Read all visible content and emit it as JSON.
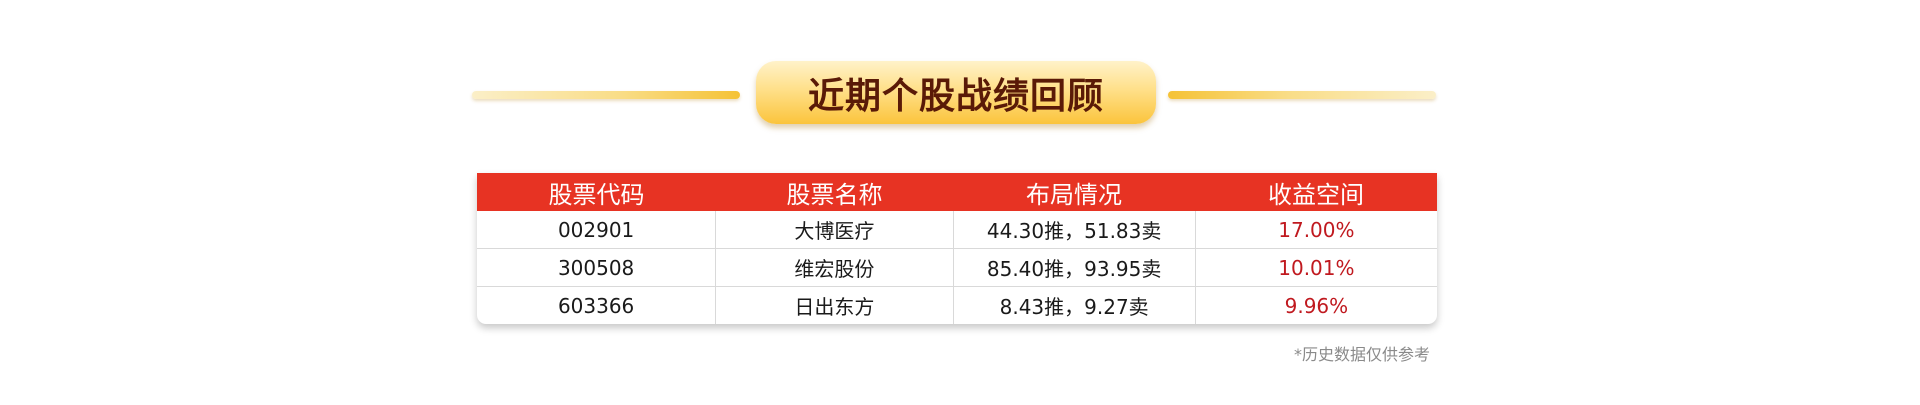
{
  "title": "近期个股战绩回顾",
  "table": {
    "headers": [
      "股票代码",
      "股票名称",
      "布局情况",
      "收益空间"
    ],
    "rows": [
      {
        "code": "002901",
        "name": "大博医疗",
        "layout": "44.30推，51.83卖",
        "gain": "17.00%"
      },
      {
        "code": "300508",
        "name": "维宏股份",
        "layout": "85.40推，93.95卖",
        "gain": "10.01%"
      },
      {
        "code": "603366",
        "name": "日出东方",
        "layout": "8.43推，9.27卖",
        "gain": "9.96%"
      }
    ]
  },
  "footnote": "*历史数据仅供参考",
  "colors": {
    "header_bg": "#e73323",
    "gain_text": "#c0191f",
    "title_text": "#5a1a07",
    "title_gold": "#fbc43c"
  }
}
